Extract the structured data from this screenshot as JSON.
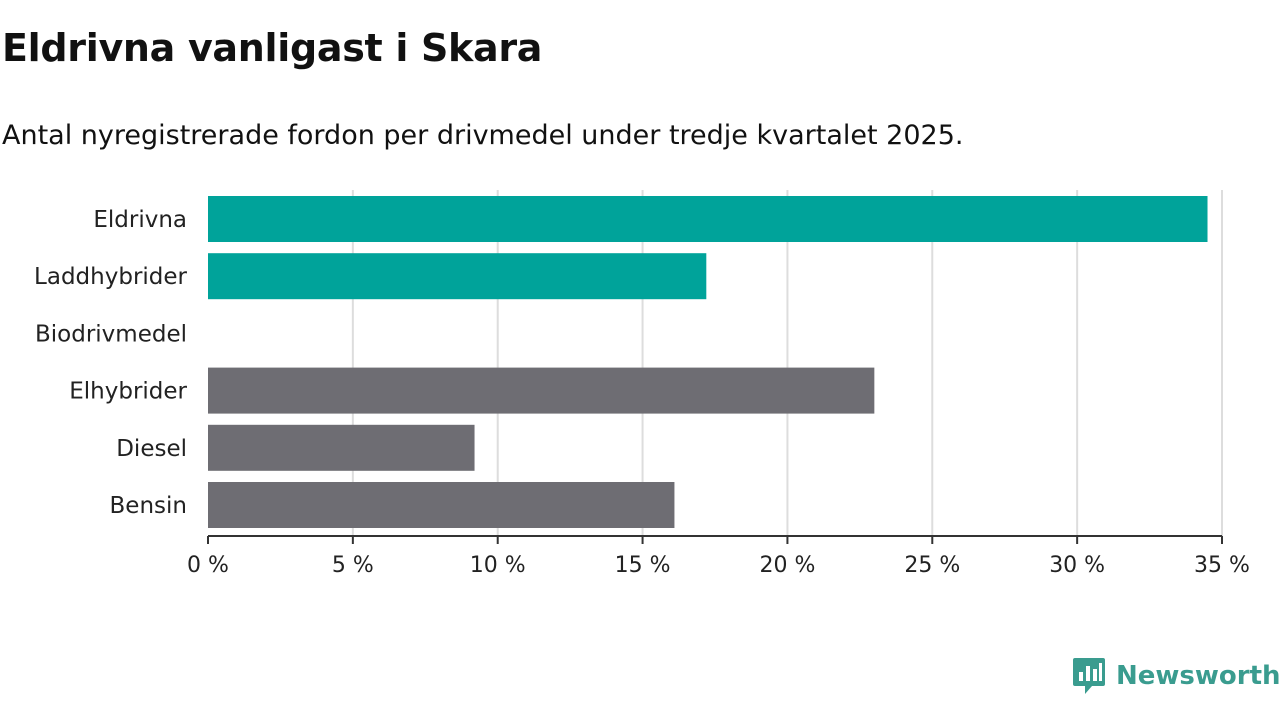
{
  "header": {
    "title": "Eldrivna vanligast i Skara",
    "subtitle": "Antal nyregistrerade fordon per drivmedel under tredje kvartalet 2025."
  },
  "brand": {
    "name": "Newsworthy",
    "color": "#3a9c8f"
  },
  "colors": {
    "highlight": "#00a39a",
    "default": "#6e6d73",
    "grid": "#dddddd",
    "axis": "#333333"
  },
  "chart_data": {
    "type": "bar",
    "orientation": "horizontal",
    "title": "Eldrivna vanligast i Skara",
    "subtitle": "Antal nyregistrerade fordon per drivmedel under tredje kvartalet 2025.",
    "xlabel": "",
    "ylabel": "",
    "categories": [
      "Eldrivna",
      "Laddhybrider",
      "Biodrivmedel",
      "Elhybrider",
      "Diesel",
      "Bensin"
    ],
    "values": [
      34.5,
      17.2,
      0,
      23.0,
      9.2,
      16.1
    ],
    "highlight": [
      true,
      true,
      false,
      false,
      false,
      false
    ],
    "xlim": [
      0,
      35
    ],
    "ticks": [
      0,
      5,
      10,
      15,
      20,
      25,
      30,
      35
    ],
    "tick_labels": [
      "0 %",
      "5 %",
      "10 %",
      "15 %",
      "20 %",
      "25 %",
      "30 %",
      "35 %"
    ],
    "grid": true
  }
}
